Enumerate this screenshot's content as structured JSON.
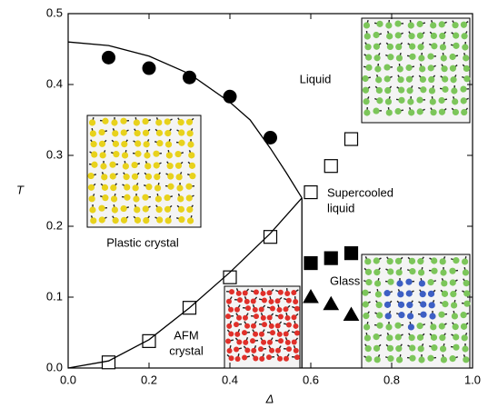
{
  "chart_data": {
    "type": "scatter",
    "xlabel": "Δ",
    "ylabel": "T",
    "xlim": [
      0,
      1
    ],
    "ylim": [
      0,
      0.5
    ],
    "xticks": [
      {
        "value": 0,
        "label": "0.0"
      },
      0.2,
      0.4,
      0.6,
      0.8,
      {
        "value": 1,
        "label": "1.0"
      }
    ],
    "yticks": [
      {
        "value": 0,
        "label": "0.0"
      },
      0.1,
      0.2,
      0.3,
      0.4,
      0.5
    ],
    "series": [
      {
        "marker": "circle",
        "filled": true,
        "color": "#000000",
        "x": [
          0.1,
          0.2,
          0.3,
          0.4,
          0.5
        ],
        "values": [
          0.438,
          0.423,
          0.41,
          0.383,
          0.325
        ]
      },
      {
        "marker": "square",
        "filled": false,
        "color": "#000000",
        "x": [
          0.1,
          0.2,
          0.3,
          0.4,
          0.5,
          0.6,
          0.65,
          0.7
        ],
        "values": [
          0.008,
          0.038,
          0.085,
          0.128,
          0.185,
          0.248,
          0.285,
          0.323
        ]
      },
      {
        "marker": "square",
        "filled": true,
        "color": "#000000",
        "x": [
          0.6,
          0.65,
          0.7
        ],
        "values": [
          0.148,
          0.155,
          0.162
        ]
      },
      {
        "marker": "triangle",
        "filled": true,
        "color": "#000000",
        "x": [
          0.6,
          0.65,
          0.7
        ],
        "values": [
          0.1,
          0.09,
          0.075
        ]
      },
      {
        "marker": "line",
        "color": "#000000",
        "x": [
          0,
          0.1,
          0.2,
          0.3,
          0.4,
          0.45,
          0.5,
          0.54,
          0.578
        ],
        "values": [
          0.46,
          0.455,
          0.44,
          0.415,
          0.375,
          0.35,
          0.31,
          0.275,
          0.24
        ]
      },
      {
        "marker": "line",
        "color": "#000000",
        "x": [
          0,
          0.1,
          0.2,
          0.3,
          0.4,
          0.5,
          0.578
        ],
        "values": [
          0,
          0.01,
          0.04,
          0.085,
          0.135,
          0.19,
          0.24
        ]
      },
      {
        "marker": "line",
        "color": "#000000",
        "x": [
          0.578,
          0.578
        ],
        "values": [
          0.24,
          0
        ]
      }
    ],
    "annotations": [
      [
        "Liquid"
      ],
      [
        "Supercooled",
        "liquid"
      ],
      [
        "Plastic crystal"
      ],
      [
        "AFM",
        "crystal"
      ],
      [
        "Glass"
      ]
    ]
  }
}
